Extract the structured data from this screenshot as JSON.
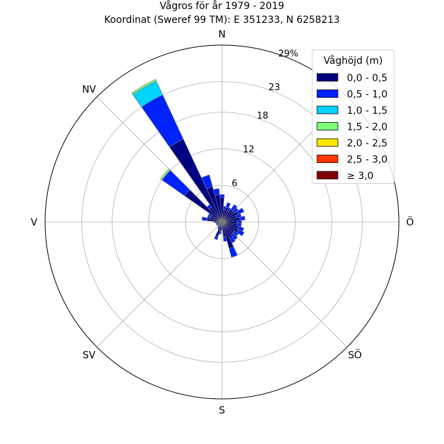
{
  "chart_data": {
    "type": "windrose",
    "title": "Vågros för år 1979 - 2019",
    "subtitle": "Koordinat (Sweref 99 TM): E 351233, N 6258213",
    "direction_labels": [
      {
        "label": "N",
        "angle": 0
      },
      {
        "label": "NV",
        "angle": 315
      },
      {
        "label": "Ö",
        "angle": 90
      },
      {
        "label": "V",
        "angle": 270
      },
      {
        "label": "SÖ",
        "angle": 135
      },
      {
        "label": "SV",
        "angle": 225
      },
      {
        "label": "S",
        "angle": 180
      }
    ],
    "radial_max": 29,
    "radial_ticks": [
      "6",
      "12",
      "18",
      "23",
      "29%"
    ],
    "radial_tick_values": [
      6,
      12,
      18,
      23,
      29
    ],
    "legend": {
      "title": "Våghöjd (m)",
      "placement": "top-right",
      "entries": [
        {
          "label": "0,0 - 0,5",
          "color": "#000080"
        },
        {
          "label": "0,5 - 1,0",
          "color": "#0022ff"
        },
        {
          "label": "1,0 - 1,5",
          "color": "#00d4ff"
        },
        {
          "label": "1,5 - 2,0",
          "color": "#7dff7a"
        },
        {
          "label": "2,0 - 2,5",
          "color": "#ffe600"
        },
        {
          "label": "2,5 - 3,0",
          "color": "#ff3800"
        },
        {
          "label": "≥ 3,0",
          "color": "#800000"
        }
      ]
    },
    "sector_width_deg": 10,
    "sectors": [
      {
        "dir": 0,
        "values": [
          4.0,
          0.5
        ]
      },
      {
        "dir": 10,
        "values": [
          2.0,
          0.6
        ]
      },
      {
        "dir": 20,
        "values": [
          2.5,
          0.8
        ]
      },
      {
        "dir": 30,
        "values": [
          2.0,
          0.6
        ]
      },
      {
        "dir": 40,
        "values": [
          2.5,
          1.0
        ]
      },
      {
        "dir": 50,
        "values": [
          2.5,
          0.8
        ]
      },
      {
        "dir": 60,
        "values": [
          3.0,
          1.0
        ]
      },
      {
        "dir": 70,
        "values": [
          2.5,
          0.8
        ]
      },
      {
        "dir": 80,
        "values": [
          3.0,
          0.8
        ]
      },
      {
        "dir": 90,
        "values": [
          2.5,
          0.7
        ]
      },
      {
        "dir": 100,
        "values": [
          2.5,
          0.7
        ]
      },
      {
        "dir": 110,
        "values": [
          2.8,
          0.9
        ]
      },
      {
        "dir": 120,
        "values": [
          3.0,
          1.0
        ]
      },
      {
        "dir": 130,
        "values": [
          2.5,
          0.8
        ]
      },
      {
        "dir": 140,
        "values": [
          2.6,
          1.0
        ]
      },
      {
        "dir": 150,
        "values": [
          3.0,
          0.8
        ]
      },
      {
        "dir": 160,
        "values": [
          4.5,
          1.5
        ]
      },
      {
        "dir": 170,
        "values": [
          2.5,
          0.7
        ]
      },
      {
        "dir": 180,
        "values": [
          1.0,
          0.3
        ]
      },
      {
        "dir": 190,
        "values": [
          1.5,
          0.5
        ]
      },
      {
        "dir": 200,
        "values": [
          2.5,
          0.5
        ]
      },
      {
        "dir": 210,
        "values": [
          1.0,
          0.3
        ]
      },
      {
        "dir": 220,
        "values": [
          0.8,
          0.2
        ]
      },
      {
        "dir": 230,
        "values": [
          0.6,
          0.2
        ]
      },
      {
        "dir": 240,
        "values": [
          0.8,
          0.2
        ]
      },
      {
        "dir": 250,
        "values": [
          0.8,
          0.2
        ]
      },
      {
        "dir": 260,
        "values": [
          0.8,
          0.2
        ]
      },
      {
        "dir": 270,
        "values": [
          1.0,
          0.3
        ]
      },
      {
        "dir": 280,
        "values": [
          2.5,
          0.8
        ]
      },
      {
        "dir": 290,
        "values": [
          2.0,
          0.5
        ]
      },
      {
        "dir": 300,
        "values": [
          2.0,
          0.5
        ]
      },
      {
        "dir": 310,
        "values": [
          7.5,
          4.5,
          0.0,
          0.3
        ]
      },
      {
        "dir": 320,
        "values": [
          3.0,
          0.5
        ]
      },
      {
        "dir": 330,
        "values": [
          15.0,
          8.0,
          2.5,
          0.3
        ]
      },
      {
        "dir": 340,
        "values": [
          6.0,
          2.0
        ]
      },
      {
        "dir": 350,
        "values": [
          4.5,
          1.0
        ]
      }
    ]
  }
}
